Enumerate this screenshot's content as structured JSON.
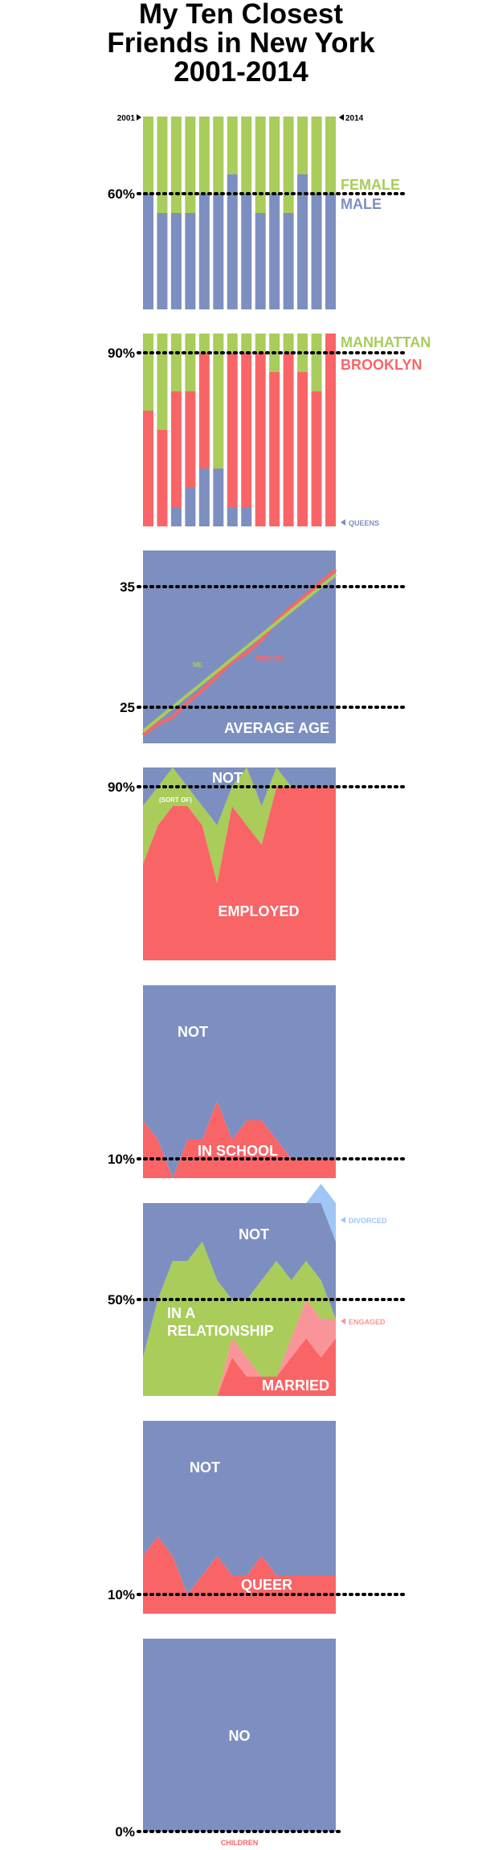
{
  "title": {
    "line1": "My Ten Closest",
    "line2": "Friends in New York",
    "line3": "2001-2014"
  },
  "colors": {
    "blue": "#7d8fc0",
    "green": "#a9cc5b",
    "red": "#f96567",
    "lightred": "#f99598",
    "lightblue": "#9fc6f4",
    "black": "#000000"
  },
  "chart_data": [
    {
      "type": "bar",
      "title": "",
      "x": [
        2001,
        2002,
        2003,
        2004,
        2005,
        2006,
        2007,
        2008,
        2009,
        2010,
        2011,
        2012,
        2013,
        2014
      ],
      "start_label": "2001",
      "end_label": "2014",
      "ylim": [
        0,
        100
      ],
      "reference": {
        "value": 60,
        "label": "60%"
      },
      "series": [
        {
          "name": "MALE",
          "color": "#7d8fc0",
          "values": [
            60,
            50,
            50,
            50,
            60,
            60,
            70,
            60,
            50,
            60,
            50,
            70,
            60,
            60
          ]
        },
        {
          "name": "FEMALE",
          "color": "#a9cc5b",
          "values": [
            40,
            50,
            50,
            50,
            40,
            40,
            30,
            40,
            50,
            40,
            50,
            30,
            40,
            40
          ]
        }
      ]
    },
    {
      "type": "bar",
      "title": "",
      "x": [
        2001,
        2002,
        2003,
        2004,
        2005,
        2006,
        2007,
        2008,
        2009,
        2010,
        2011,
        2012,
        2013,
        2014
      ],
      "ylim": [
        0,
        100
      ],
      "reference": {
        "value": 90,
        "label": "90%"
      },
      "series": [
        {
          "name": "QUEENS",
          "color": "#7d8fc0",
          "values": [
            0,
            0,
            10,
            20,
            30,
            30,
            10,
            10,
            0,
            0,
            0,
            0,
            0,
            0
          ]
        },
        {
          "name": "BROOKLYN",
          "color": "#f96567",
          "values": [
            60,
            50,
            60,
            50,
            60,
            0,
            80,
            80,
            90,
            80,
            90,
            80,
            70,
            100
          ]
        },
        {
          "name": "MANHATTAN",
          "color": "#a9cc5b",
          "values": [
            40,
            50,
            30,
            30,
            10,
            70,
            10,
            10,
            10,
            20,
            10,
            20,
            30,
            0
          ]
        }
      ]
    },
    {
      "type": "line",
      "title": "AVERAGE AGE",
      "x": [
        2001,
        2002,
        2003,
        2004,
        2005,
        2006,
        2007,
        2008,
        2009,
        2010,
        2011,
        2012,
        2013,
        2014
      ],
      "ylim": [
        22,
        38
      ],
      "references": [
        {
          "value": 35,
          "label": "35"
        },
        {
          "value": 25,
          "label": "25"
        }
      ],
      "series": [
        {
          "name": "ME",
          "color": "#a9cc5b",
          "values": [
            23,
            24,
            25,
            26,
            27,
            28,
            29,
            30,
            31,
            32,
            33,
            34,
            35,
            36
          ]
        },
        {
          "name": "FRIENDS",
          "color": "#f96567",
          "values": [
            22.7,
            23.6,
            24.2,
            25.4,
            26.4,
            27.6,
            28.8,
            29.5,
            30.6,
            32.2,
            33.3,
            34.3,
            35.4,
            36.4
          ]
        }
      ]
    },
    {
      "type": "area",
      "title": "",
      "x": [
        2001,
        2002,
        2003,
        2004,
        2005,
        2006,
        2007,
        2008,
        2009,
        2010,
        2011,
        2012,
        2013,
        2014
      ],
      "ylim": [
        0,
        100
      ],
      "reference": {
        "value": 90,
        "label": "90%"
      },
      "labels": {
        "top": "NOT",
        "middle": "(SORT OF)",
        "bottom": "EMPLOYED"
      },
      "series": [
        {
          "name": "EMPLOYED",
          "color": "#f96567",
          "values": [
            50,
            70,
            80,
            80,
            70,
            40,
            80,
            70,
            60,
            90,
            90,
            90,
            90,
            90
          ]
        },
        {
          "name": "(SORT OF)",
          "color": "#a9cc5b",
          "values": [
            30,
            20,
            20,
            10,
            10,
            30,
            10,
            30,
            20,
            10,
            0,
            0,
            0,
            0
          ]
        },
        {
          "name": "NOT",
          "color": "#7d8fc0",
          "values": [
            20,
            10,
            0,
            10,
            20,
            30,
            10,
            0,
            20,
            0,
            10,
            10,
            10,
            10
          ]
        }
      ]
    },
    {
      "type": "area",
      "title": "",
      "x": [
        2001,
        2002,
        2003,
        2004,
        2005,
        2006,
        2007,
        2008,
        2009,
        2010,
        2011,
        2012,
        2013,
        2014
      ],
      "ylim": [
        0,
        100
      ],
      "reference": {
        "value": 10,
        "label": "10%"
      },
      "labels": {
        "top": "NOT",
        "bottom": "IN SCHOOL"
      },
      "series": [
        {
          "name": "IN SCHOOL",
          "color": "#f96567",
          "values": [
            30,
            20,
            0,
            20,
            20,
            40,
            20,
            30,
            30,
            20,
            10,
            10,
            10,
            10
          ]
        },
        {
          "name": "NOT",
          "color": "#7d8fc0",
          "values": [
            70,
            80,
            100,
            80,
            80,
            60,
            80,
            70,
            70,
            80,
            90,
            90,
            90,
            90
          ]
        }
      ]
    },
    {
      "type": "area",
      "title": "",
      "x": [
        2001,
        2002,
        2003,
        2004,
        2005,
        2006,
        2007,
        2008,
        2009,
        2010,
        2011,
        2012,
        2013,
        2014
      ],
      "ylim": [
        0,
        100
      ],
      "reference": {
        "value": 50,
        "label": "50%"
      },
      "labels": {
        "top": "NOT",
        "relationship1": "IN A",
        "relationship2": "RELATIONSHIP",
        "married": "MARRIED",
        "divorced": "DIVORCED",
        "engaged": "ENGAGED"
      },
      "series": [
        {
          "name": "MARRIED",
          "color": "#f96567",
          "values": [
            0,
            0,
            0,
            0,
            0,
            0,
            20,
            10,
            10,
            10,
            20,
            30,
            20,
            30
          ]
        },
        {
          "name": "ENGAGED",
          "color": "#f99598",
          "values": [
            0,
            0,
            0,
            0,
            0,
            0,
            10,
            10,
            0,
            0,
            10,
            20,
            20,
            10
          ]
        },
        {
          "name": "IN A RELATIONSHIP",
          "color": "#a9cc5b",
          "values": [
            20,
            50,
            70,
            70,
            80,
            60,
            20,
            30,
            50,
            60,
            30,
            20,
            20,
            0
          ]
        },
        {
          "name": "NOT",
          "color": "#7d8fc0",
          "values": [
            80,
            50,
            30,
            30,
            20,
            40,
            50,
            50,
            40,
            30,
            40,
            30,
            40,
            40
          ]
        },
        {
          "name": "DIVORCED",
          "color": "#9fc6f4",
          "values": [
            0,
            0,
            0,
            0,
            0,
            0,
            0,
            0,
            0,
            0,
            0,
            0,
            10,
            20
          ]
        }
      ]
    },
    {
      "type": "area",
      "title": "",
      "x": [
        2001,
        2002,
        2003,
        2004,
        2005,
        2006,
        2007,
        2008,
        2009,
        2010,
        2011,
        2012,
        2013,
        2014
      ],
      "ylim": [
        0,
        100
      ],
      "reference": {
        "value": 10,
        "label": "10%"
      },
      "labels": {
        "top": "NOT",
        "bottom": "QUEER"
      },
      "series": [
        {
          "name": "QUEER",
          "color": "#f96567",
          "values": [
            30,
            40,
            30,
            10,
            20,
            30,
            20,
            20,
            30,
            20,
            20,
            20,
            20,
            20
          ]
        },
        {
          "name": "NOT",
          "color": "#7d8fc0",
          "values": [
            70,
            60,
            70,
            90,
            80,
            70,
            80,
            80,
            70,
            80,
            80,
            80,
            80,
            80
          ]
        }
      ]
    },
    {
      "type": "area",
      "title": "",
      "x": [
        2001,
        2014
      ],
      "ylim": [
        0,
        100
      ],
      "reference": {
        "value": 0,
        "label": "0%"
      },
      "labels": {
        "center": "NO",
        "bottom": "CHILDREN"
      },
      "series": [
        {
          "name": "NO",
          "color": "#7d8fc0",
          "values": [
            100,
            100
          ]
        },
        {
          "name": "CHILDREN",
          "color": "#f96567",
          "values": [
            0,
            0
          ]
        }
      ]
    }
  ]
}
